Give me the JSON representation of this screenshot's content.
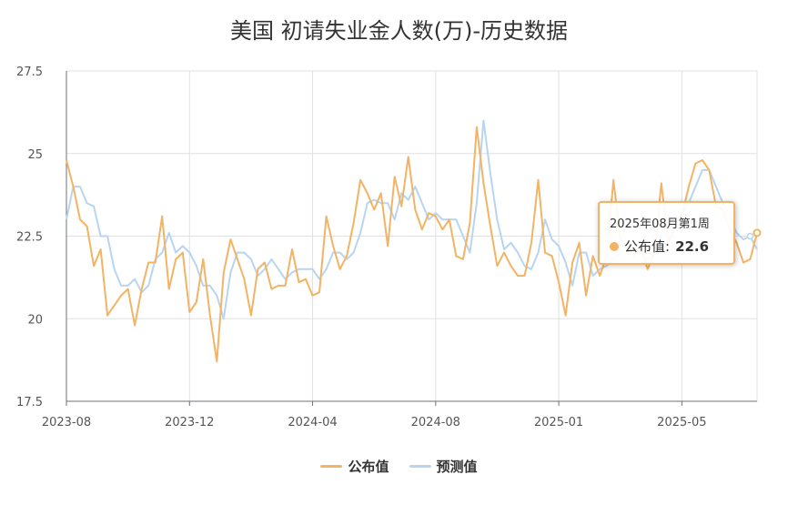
{
  "page": {
    "title": "美国 初请失业金人数(万)-历史数据"
  },
  "legend": {
    "published_label": "公布值",
    "forecast_label": "预测值"
  },
  "tooltip": {
    "date": "2025年08月第1周",
    "series_label": "公布值:",
    "value": "22.6"
  },
  "colors": {
    "published": "#f3b364",
    "forecast": "#b7d5f0",
    "grid": "#e0e0e0",
    "axis": "#6e7079"
  },
  "chart_data": {
    "type": "line",
    "title": "美国 初请失业金人数(万)-历史数据",
    "xlabel": "",
    "ylabel": "",
    "ylim": [
      17.5,
      27.5
    ],
    "y_ticks": [
      17.5,
      20,
      22.5,
      25,
      27.5
    ],
    "y_tick_labels": [
      "17.5",
      "20",
      "22.5",
      "25",
      "27.5"
    ],
    "x_range": [
      "2023-08",
      "2025-08"
    ],
    "x_tick_labels": [
      "2023-08",
      "2023-12",
      "2024-04",
      "2024-08",
      "2025-01",
      "2025-05"
    ],
    "x_tick_positions": [
      0,
      18,
      36,
      54,
      72,
      90
    ],
    "grid": true,
    "legend_position": "bottom",
    "series": [
      {
        "name": "公布值",
        "values": [
          24.8,
          24.0,
          23.0,
          22.8,
          21.6,
          22.1,
          20.1,
          20.4,
          20.7,
          20.9,
          19.8,
          20.9,
          21.7,
          21.7,
          23.1,
          20.9,
          21.8,
          22.0,
          20.2,
          20.5,
          21.8,
          20.1,
          18.7,
          21.4,
          22.4,
          21.8,
          21.2,
          20.1,
          21.5,
          21.7,
          20.9,
          21.0,
          21.0,
          22.1,
          21.1,
          21.2,
          20.7,
          20.8,
          23.1,
          22.2,
          21.5,
          21.9,
          22.9,
          24.2,
          23.8,
          23.3,
          23.8,
          22.2,
          24.3,
          23.4,
          24.9,
          23.3,
          22.7,
          23.2,
          23.1,
          22.7,
          23.0,
          21.9,
          21.8,
          22.9,
          25.8,
          24.1,
          22.8,
          21.6,
          22.0,
          21.6,
          21.3,
          21.3,
          22.3,
          24.2,
          22.0,
          21.9,
          21.1,
          20.1,
          21.7,
          22.3,
          20.7,
          21.9,
          21.3,
          21.9,
          24.2,
          22.4,
          22.3,
          21.9,
          22.1,
          21.5,
          22.0,
          24.1,
          22.3,
          22.8,
          23.1,
          24.0,
          24.7,
          24.8,
          24.5,
          23.4,
          23.3,
          22.7,
          22.3,
          21.7,
          21.8,
          22.6
        ]
      },
      {
        "name": "预测值",
        "values": [
          23.0,
          24.0,
          24.0,
          23.5,
          23.4,
          22.5,
          22.5,
          21.5,
          21.0,
          21.0,
          21.2,
          20.8,
          21.0,
          21.8,
          22.0,
          22.6,
          22.0,
          22.2,
          22.0,
          21.6,
          21.0,
          21.0,
          20.7,
          20.0,
          21.4,
          22.0,
          22.0,
          21.8,
          21.3,
          21.5,
          21.8,
          21.5,
          21.2,
          21.4,
          21.5,
          21.5,
          21.5,
          21.2,
          21.5,
          22.0,
          22.0,
          21.8,
          22.0,
          22.6,
          23.5,
          23.6,
          23.5,
          23.5,
          23.0,
          23.8,
          23.6,
          24.0,
          23.5,
          23.0,
          23.2,
          23.0,
          23.0,
          23.0,
          22.5,
          22.0,
          23.5,
          26.0,
          24.4,
          23.0,
          22.1,
          22.3,
          22.0,
          21.6,
          21.5,
          22.0,
          23.0,
          22.4,
          22.2,
          21.7,
          21.0,
          22.0,
          22.0,
          21.3,
          21.5,
          21.6,
          21.8,
          22.0,
          22.2,
          22.1,
          22.0,
          21.8,
          22.0,
          22.5,
          22.7,
          22.9,
          23.1,
          23.5,
          24.0,
          24.5,
          24.5,
          24.0,
          23.5,
          23.1,
          22.6,
          22.4,
          22.5,
          22.1
        ]
      }
    ]
  }
}
